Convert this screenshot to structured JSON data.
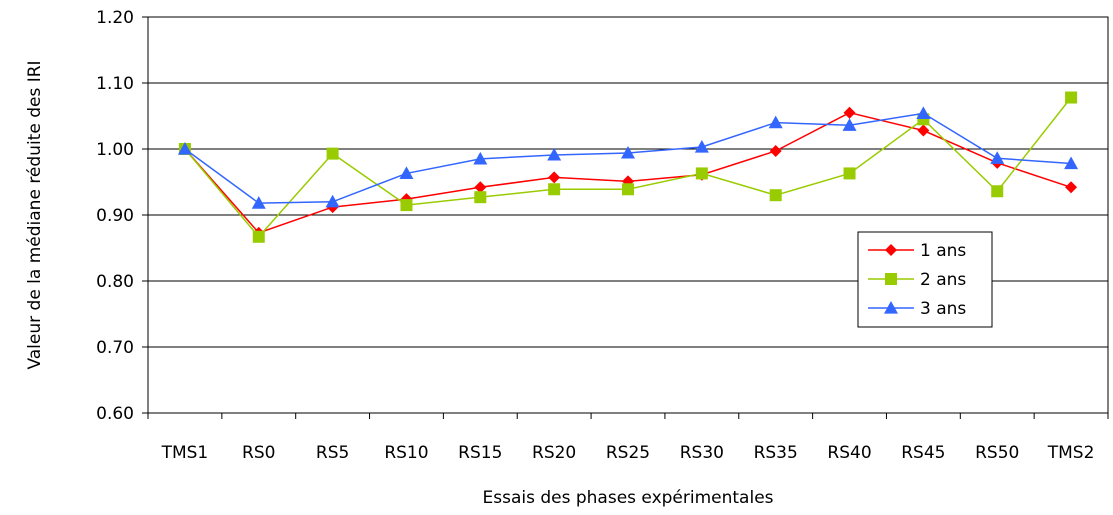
{
  "chart_data": {
    "type": "line",
    "xlabel": "Essais des phases expérimentales",
    "ylabel": "Valeur de la médiane réduite des IRI",
    "categories": [
      "TMS1",
      "RS0",
      "RS5",
      "RS10",
      "RS15",
      "RS20",
      "RS25",
      "RS30",
      "RS35",
      "RS40",
      "RS45",
      "RS50",
      "TMS2"
    ],
    "ylim": [
      0.6,
      1.2
    ],
    "yticks": [
      "0.60",
      "0.70",
      "0.80",
      "0.90",
      "1.00",
      "1.10",
      "1.20"
    ],
    "grid": "horizontal",
    "legend_position": "right",
    "series": [
      {
        "name": "1 ans",
        "color": "#ff0000",
        "marker": "diamond",
        "values": [
          1.0,
          0.873,
          0.912,
          0.924,
          0.942,
          0.957,
          0.951,
          0.961,
          0.997,
          1.055,
          1.028,
          0.979,
          0.942
        ]
      },
      {
        "name": "2 ans",
        "color": "#99cc00",
        "marker": "square",
        "values": [
          1.0,
          0.867,
          0.993,
          0.915,
          0.927,
          0.939,
          0.939,
          0.963,
          0.93,
          0.963,
          1.045,
          0.936,
          1.078
        ]
      },
      {
        "name": "3 ans",
        "color": "#3366ff",
        "marker": "triangle",
        "values": [
          1.0,
          0.918,
          0.92,
          0.963,
          0.985,
          0.991,
          0.994,
          1.003,
          1.04,
          1.036,
          1.054,
          0.986,
          0.978
        ]
      }
    ]
  }
}
